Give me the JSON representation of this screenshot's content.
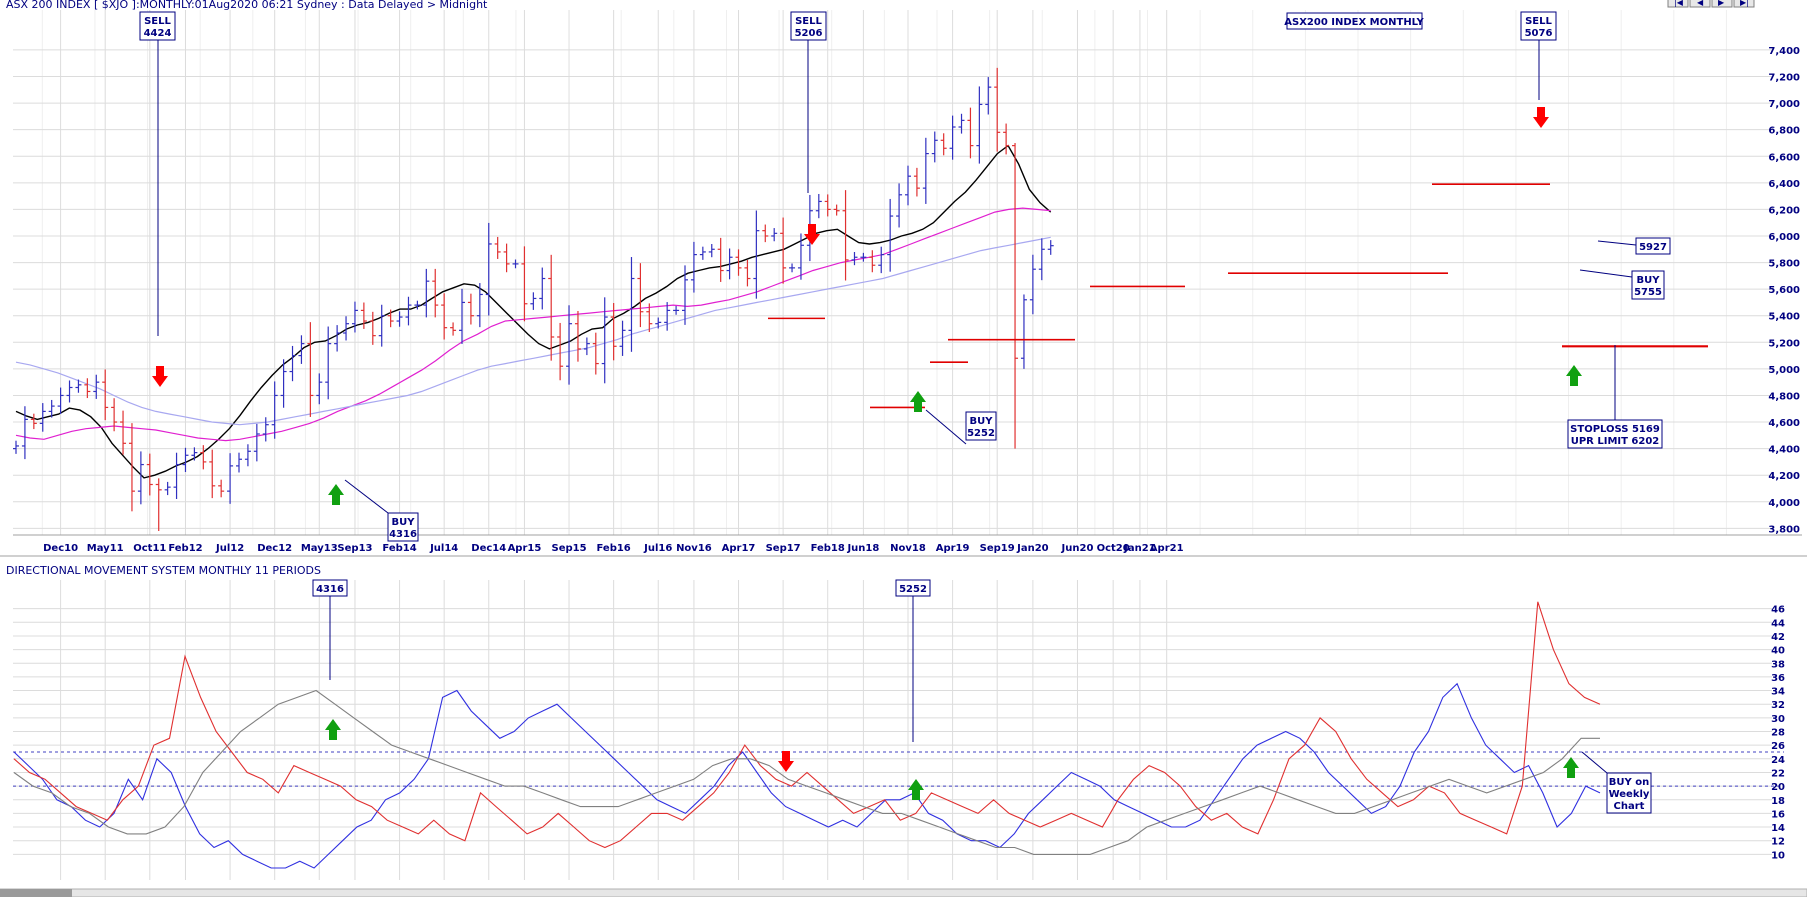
{
  "header": {
    "title": "ASX 200 INDEX [ $XJO ]:MONTHLY:01Aug2020 06:21 Sydney : Data Delayed > Midnight",
    "chart_label": "ASX200 INDEX MONTHLY",
    "indicator_title": "DIRECTIONAL MOVEMENT SYSTEM MONTHLY 11 PERIODS"
  },
  "colors": {
    "background": "#ffffff",
    "up_bar": "#3030c0",
    "down_bar": "#e03030",
    "ma_fast": "#000000",
    "ma_mid": "#e020d0",
    "ma_slow": "#a8a8f0",
    "plus_di": "#3030e0",
    "minus_di": "#e03030",
    "adx": "#808080",
    "grid": "#dcdcdc",
    "text": "#000080",
    "buy_arrow": "#10a010",
    "sell_arrow": "#ff0000",
    "stop_line": "#e00000"
  },
  "chart_data": [
    {
      "type": "ohlc",
      "title": "ASX200 INDEX MONTHLY",
      "x_tick_labels": [
        "Dec10",
        "May11",
        "Oct11",
        "Feb12",
        "Jul12",
        "Dec12",
        "May13",
        "Sep13",
        "Feb14",
        "Jul14",
        "Dec14",
        "Apr15",
        "Sep15",
        "Feb16",
        "Jul16",
        "Nov16",
        "Apr17",
        "Sep17",
        "Feb18",
        "Jun18",
        "Nov18",
        "Apr19",
        "Sep19",
        "Jan20",
        "Jun20",
        "Oct20",
        "Jan21",
        "Apr21"
      ],
      "y_tick_labels": [
        "3,800",
        "4,000",
        "4,200",
        "4,400",
        "4,600",
        "4,800",
        "5,000",
        "5,200",
        "5,400",
        "5,600",
        "5,800",
        "6,000",
        "6,200",
        "6,400",
        "6,600",
        "6,800",
        "7,000",
        "7,200",
        "7,400"
      ],
      "ylim": [
        3750,
        7550
      ],
      "start_month": "Jul10",
      "close": [
        4420,
        4620,
        4590,
        4680,
        4720,
        4800,
        4860,
        4880,
        4830,
        4900,
        4710,
        4600,
        4440,
        4080,
        4280,
        4130,
        4090,
        4110,
        4280,
        4350,
        4370,
        4300,
        4120,
        4080,
        4270,
        4320,
        4380,
        4510,
        4580,
        4800,
        4980,
        5100,
        5190,
        4800,
        4900,
        5190,
        5270,
        5340,
        5440,
        5360,
        5250,
        5400,
        5360,
        5390,
        5480,
        5480,
        5660,
        5480,
        5310,
        5290,
        5500,
        5400,
        5560,
        5940,
        5880,
        5790,
        5790,
        5490,
        5530,
        5680,
        5240,
        5020,
        5340,
        5150,
        5190,
        5040,
        5390,
        5170,
        5290,
        5680,
        5430,
        5340,
        5350,
        5440,
        5440,
        5670,
        5860,
        5880,
        5900,
        5740,
        5840,
        5760,
        5680,
        6040,
        6000,
        6020,
        5760,
        5760,
        5930,
        6190,
        6260,
        6200,
        6190,
        5820,
        5840,
        5840,
        5780,
        5860,
        6150,
        6310,
        6450,
        6360,
        6620,
        6720,
        6660,
        6820,
        6870,
        6680,
        6990,
        7120,
        6780,
        6680,
        5080,
        5520,
        5750,
        5900,
        5927
      ],
      "series": [
        {
          "name": "",
          "values": [
            4680,
            4645,
            4620,
            4640,
            4660,
            4705,
            4690,
            4640,
            4560,
            4440,
            4350,
            4260,
            4180,
            4200,
            4230,
            4270,
            4300,
            4340,
            4400,
            4470,
            4550,
            4650,
            4760,
            4860,
            4950,
            5030,
            5090,
            5160,
            5200,
            5210,
            5250,
            5300,
            5330,
            5350,
            5380,
            5420,
            5450,
            5450,
            5480,
            5530,
            5580,
            5610,
            5640,
            5630,
            5580,
            5500,
            5420,
            5340,
            5260,
            5190,
            5150,
            5180,
            5210,
            5260,
            5300,
            5310,
            5380,
            5420,
            5470,
            5530,
            5570,
            5620,
            5680,
            5720,
            5740,
            5760,
            5770,
            5790,
            5810,
            5840,
            5860,
            5880,
            5900,
            5940,
            5980,
            6020,
            6040,
            6050,
            6000,
            5950,
            5940,
            5950,
            5970,
            6000,
            6020,
            6050,
            6100,
            6180,
            6260,
            6330,
            6420,
            6520,
            6620,
            6680,
            6540,
            6350,
            6250,
            6180
          ]
        },
        {
          "name": "",
          "values": [
            4500,
            4480,
            4470,
            4500,
            4530,
            4550,
            4560,
            4570,
            4560,
            4550,
            4540,
            4520,
            4500,
            4480,
            4470,
            4460,
            4470,
            4490,
            4510,
            4530,
            4560,
            4590,
            4630,
            4680,
            4720,
            4760,
            4810,
            4870,
            4930,
            4990,
            5060,
            5140,
            5210,
            5260,
            5320,
            5360,
            5370,
            5380,
            5390,
            5400,
            5410,
            5420,
            5430,
            5440,
            5450,
            5460,
            5470,
            5480,
            5470,
            5480,
            5500,
            5520,
            5550,
            5580,
            5620,
            5660,
            5700,
            5740,
            5770,
            5800,
            5820,
            5840,
            5860,
            5900,
            5940,
            5980,
            6020,
            6060,
            6100,
            6140,
            6180,
            6200,
            6210,
            6200,
            6190
          ]
        },
        {
          "name": "",
          "values": [
            5050,
            5030,
            5000,
            4970,
            4930,
            4890,
            4850,
            4800,
            4750,
            4710,
            4680,
            4660,
            4640,
            4620,
            4600,
            4590,
            4580,
            4590,
            4600,
            4620,
            4640,
            4660,
            4680,
            4700,
            4720,
            4740,
            4760,
            4780,
            4800,
            4830,
            4870,
            4910,
            4950,
            4990,
            5020,
            5040,
            5060,
            5080,
            5100,
            5120,
            5140,
            5160,
            5190,
            5220,
            5260,
            5290,
            5320,
            5350,
            5380,
            5410,
            5440,
            5460,
            5480,
            5500,
            5520,
            5540,
            5560,
            5580,
            5600,
            5620,
            5640,
            5660,
            5680,
            5710,
            5740,
            5770,
            5800,
            5830,
            5860,
            5890,
            5910,
            5930,
            5950,
            5970,
            5990
          ]
        }
      ],
      "annotations": [
        {
          "type": "sell",
          "label": "SELL",
          "value": "4424"
        },
        {
          "type": "sell",
          "label": "SELL",
          "value": "5206"
        },
        {
          "type": "sell",
          "label": "SELL",
          "value": "5076"
        },
        {
          "type": "buy",
          "label": "BUY",
          "value": "4316"
        },
        {
          "type": "buy",
          "label": "BUY",
          "value": "5252"
        },
        {
          "type": "buy",
          "label": "BUY",
          "value": "5755"
        },
        {
          "type": "last",
          "label": "5927"
        },
        {
          "type": "stop",
          "label": "STOPLOSS 5169",
          "label2": "UPR LIMIT 6202"
        }
      ]
    },
    {
      "type": "line",
      "title": "DIRECTIONAL MOVEMENT SYSTEM MONTHLY 11 PERIODS",
      "y_tick_labels": [
        "10",
        "12",
        "14",
        "16",
        "18",
        "20",
        "22",
        "24",
        "26",
        "28",
        "30",
        "32",
        "34",
        "36",
        "38",
        "40",
        "42",
        "44",
        "46"
      ],
      "ylim": [
        8,
        48
      ],
      "reference_lines": [
        20,
        25
      ],
      "series": [
        {
          "name": "",
          "values": [
            25,
            23,
            21,
            18,
            17,
            15,
            14,
            16,
            21,
            18,
            24,
            22,
            17,
            13,
            11,
            12,
            10,
            9,
            8,
            8,
            9,
            8,
            10,
            12,
            14,
            15,
            18,
            19,
            21,
            24,
            33,
            34,
            31,
            29,
            27,
            28,
            30,
            31,
            32,
            30,
            28,
            26,
            24,
            22,
            20,
            18,
            17,
            16,
            18,
            20,
            23,
            25,
            22,
            19,
            17,
            16,
            15,
            14,
            15,
            14,
            16,
            18,
            18,
            19,
            16,
            15,
            13,
            12,
            12,
            11,
            13,
            16,
            18,
            20,
            22,
            21,
            20,
            18,
            17,
            16,
            15,
            14,
            14,
            15,
            18,
            21,
            24,
            26,
            27,
            28,
            27,
            25,
            22,
            20,
            18,
            16,
            17,
            20,
            25,
            28,
            33,
            35,
            30,
            26,
            24,
            22,
            23,
            19,
            14,
            16,
            20,
            19
          ]
        },
        {
          "name": "",
          "values": [
            24,
            22,
            21,
            19,
            17,
            16,
            15,
            18,
            20,
            26,
            27,
            39,
            33,
            28,
            25,
            22,
            21,
            19,
            23,
            22,
            21,
            20,
            18,
            17,
            15,
            14,
            13,
            15,
            13,
            12,
            19,
            17,
            15,
            13,
            14,
            16,
            14,
            12,
            11,
            12,
            14,
            16,
            16,
            15,
            17,
            19,
            22,
            26,
            23,
            21,
            20,
            22,
            20,
            18,
            16,
            17,
            18,
            15,
            16,
            19,
            18,
            17,
            16,
            18,
            16,
            15,
            14,
            15,
            16,
            15,
            14,
            18,
            21,
            23,
            22,
            20,
            17,
            15,
            16,
            14,
            13,
            18,
            24,
            26,
            30,
            28,
            24,
            21,
            19,
            17,
            18,
            20,
            19,
            16,
            15,
            14,
            13,
            20,
            47,
            40,
            35,
            33,
            32
          ]
        },
        {
          "name": "",
          "values": [
            22,
            20,
            19,
            17,
            16,
            14,
            13,
            13,
            14,
            17,
            22,
            25,
            28,
            30,
            32,
            33,
            34,
            32,
            30,
            28,
            26,
            25,
            24,
            23,
            22,
            21,
            20,
            20,
            19,
            18,
            17,
            17,
            17,
            18,
            19,
            20,
            21,
            23,
            24,
            24,
            23,
            21,
            20,
            19,
            18,
            17,
            16,
            16,
            15,
            14,
            13,
            12,
            11,
            11,
            10,
            10,
            10,
            10,
            11,
            12,
            14,
            15,
            16,
            17,
            18,
            19,
            20,
            19,
            18,
            17,
            16,
            16,
            17,
            18,
            19,
            20,
            21,
            20,
            19,
            20,
            21,
            22,
            24,
            27,
            27
          ]
        }
      ],
      "annotations": [
        {
          "label": "4316"
        },
        {
          "label": "5252"
        },
        {
          "label": "BUY on",
          "label2": "Weekly",
          "label3": "Chart"
        }
      ]
    }
  ]
}
